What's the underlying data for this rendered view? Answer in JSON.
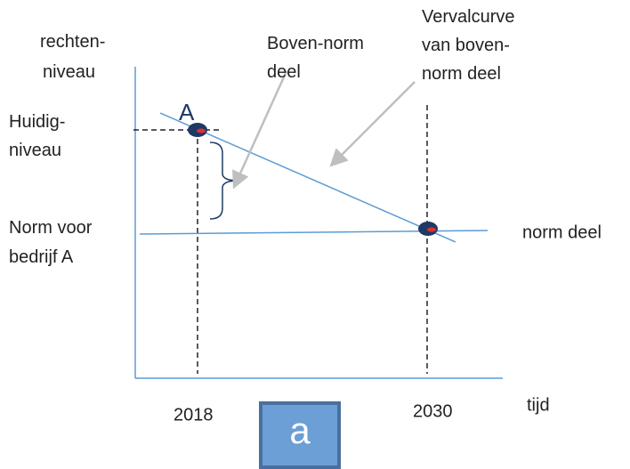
{
  "y_axis_label": [
    "rechten-",
    "niveau"
  ],
  "current_level_label": [
    "Huidig-",
    "niveau"
  ],
  "norm_label": [
    "Norm voor",
    "bedrijf A"
  ],
  "above_norm_label": [
    "Boven-norm",
    "deel"
  ],
  "decay_curve_label": [
    "Vervalcurve",
    "van boven-",
    "norm deel"
  ],
  "norm_part_label": "norm deel",
  "point_label": "A",
  "x_labels": [
    "2018",
    "2030"
  ],
  "x_axis_label": "tijd",
  "button_label": "a"
}
